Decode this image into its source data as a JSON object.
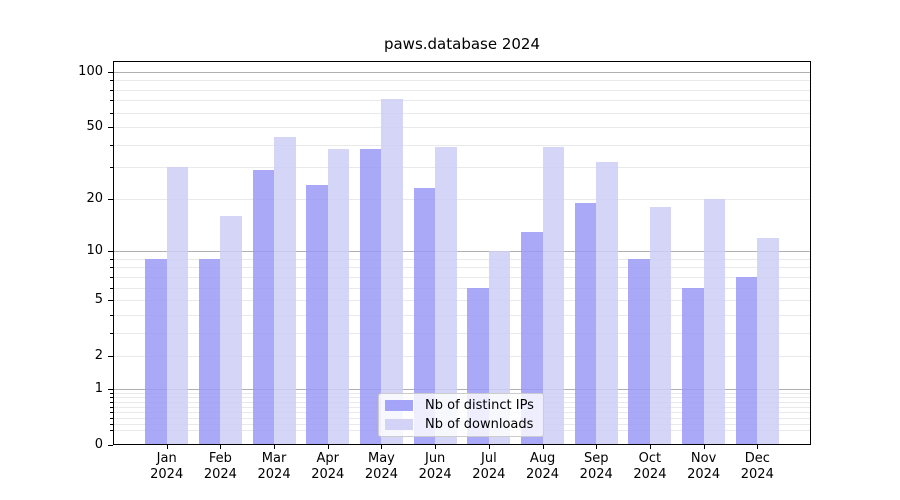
{
  "chart_data": {
    "type": "bar",
    "title": "paws.database 2024",
    "categories": [
      "Jan 2024",
      "Feb 2024",
      "Mar 2024",
      "Apr 2024",
      "May 2024",
      "Jun 2024",
      "Jul 2024",
      "Aug 2024",
      "Sep 2024",
      "Oct 2024",
      "Nov 2024",
      "Dec 2024"
    ],
    "series": [
      {
        "name": "Nb of distinct IPs",
        "color": "#9a9af7",
        "values": [
          9,
          9,
          29,
          24,
          38,
          23,
          6,
          13,
          19,
          9,
          6,
          7
        ]
      },
      {
        "name": "Nb of downloads",
        "color": "#cecef7",
        "values": [
          30,
          16,
          44,
          38,
          71,
          39,
          10,
          39,
          32,
          18,
          20,
          12
        ]
      }
    ],
    "yscale": "log1p",
    "yticks": [
      0,
      1,
      2,
      5,
      10,
      20,
      50,
      100
    ],
    "ytick_major": [
      1,
      10,
      100
    ],
    "ylim": [
      0,
      114
    ],
    "xlabel": "",
    "ylabel": "",
    "grid": true,
    "legend_position": "lower center"
  }
}
